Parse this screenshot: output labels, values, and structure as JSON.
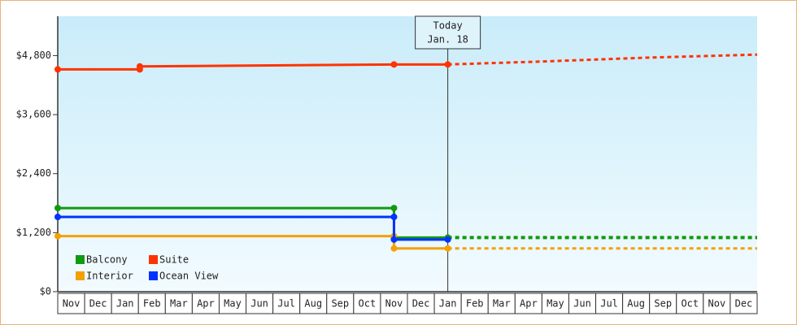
{
  "chart_data": {
    "type": "line",
    "categories": [
      "Nov",
      "Dec",
      "Jan",
      "Feb",
      "Mar",
      "Apr",
      "May",
      "Jun",
      "Jul",
      "Aug",
      "Sep",
      "Oct",
      "Nov",
      "Dec",
      "Jan",
      "Feb",
      "Mar",
      "Apr",
      "May",
      "Jun",
      "Jul",
      "Aug",
      "Sep",
      "Oct",
      "Nov",
      "Dec"
    ],
    "xlim": [
      0,
      26
    ],
    "ylim": [
      0,
      5600
    ],
    "yticks": [
      {
        "value": 0,
        "label": "$0"
      },
      {
        "value": 1200,
        "label": "$1,200"
      },
      {
        "value": 2400,
        "label": "$2,400"
      },
      {
        "value": 3600,
        "label": "$3,600"
      },
      {
        "value": 4800,
        "label": "$4,800"
      }
    ],
    "today": {
      "label": "Today",
      "date": "Jan. 18",
      "x": 14.5
    },
    "legend": "lower left",
    "series": [
      {
        "name": "Balcony",
        "color": "#119911",
        "x": [
          0,
          12.5,
          12.5,
          14.5
        ],
        "values": [
          1700,
          1700,
          1100,
          1100
        ],
        "forecast_x": [
          14.5,
          26
        ],
        "forecast_values": [
          1100,
          1100
        ]
      },
      {
        "name": "Suite",
        "color": "#ff3300",
        "x": [
          0,
          3.05,
          3.05,
          12.5,
          14.5
        ],
        "values": [
          4520,
          4520,
          4580,
          4620,
          4620
        ],
        "forecast_x": [
          14.5,
          18,
          22,
          26
        ],
        "forecast_values": [
          4620,
          4680,
          4760,
          4820
        ]
      },
      {
        "name": "Interior",
        "color": "#f5a000",
        "x": [
          0,
          12.5,
          12.5,
          14.5
        ],
        "values": [
          1130,
          1130,
          880,
          880
        ],
        "forecast_x": [
          14.5,
          26
        ],
        "forecast_values": [
          880,
          880
        ]
      },
      {
        "name": "Ocean View",
        "color": "#0033ff",
        "x": [
          0,
          12.5,
          12.5,
          14.5
        ],
        "values": [
          1520,
          1520,
          1060,
          1060
        ],
        "forecast_x": [],
        "forecast_values": []
      }
    ]
  }
}
